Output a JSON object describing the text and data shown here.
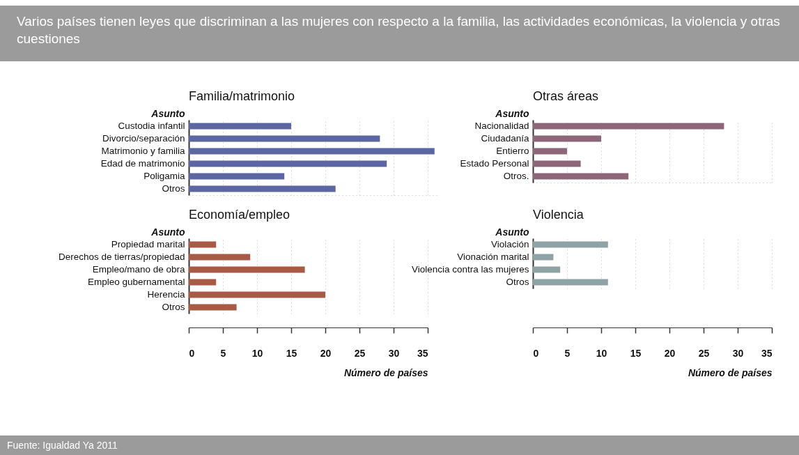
{
  "chart_data": [
    {
      "type": "bar",
      "orientation": "horizontal",
      "title": "Familia/matrimonio",
      "ylabel": "Asunto",
      "categories": [
        "Custodia infantil",
        "Divorcio/separación",
        "Matrimonio y familia",
        "Edad de matrimonio",
        "Poligamia",
        "Otros"
      ],
      "series": [
        {
          "color": "#5b66a3",
          "values": [
            15,
            28,
            36,
            29,
            14,
            21.5
          ]
        }
      ],
      "xlim": [
        0,
        36.5
      ],
      "xticks": [
        0,
        5,
        10,
        15,
        20,
        25,
        30,
        35
      ],
      "grid": "x",
      "tick_labels": "y",
      "legend": false,
      "annotations": [
        "Varios países tienen leyes que discriminan a las mujeres con respecto a la familia, las actividades económicas, la violencia y otras cuestiones"
      ]
    },
    {
      "type": "bar",
      "orientation": "horizontal",
      "title": "Otras áreas",
      "ylabel": "Asunto",
      "categories": [
        "Nacionalidad",
        "Ciudadanía",
        "Entierro",
        "Estado Personal",
        "Otros."
      ],
      "series": [
        {
          "color": "#8e6679",
          "values": [
            28,
            10,
            5,
            7,
            14
          ]
        }
      ],
      "xlim": [
        0,
        35
      ],
      "xticks": [
        0,
        5,
        10,
        15,
        20,
        25,
        30,
        35
      ],
      "grid": "x",
      "tick_labels": "y",
      "legend": false
    },
    {
      "type": "bar",
      "orientation": "horizontal",
      "title": "Economía/empleo",
      "ylabel": "Asunto",
      "xlabel": "Número de países",
      "categories": [
        "Propiedad marital",
        "Derechos de tierras/propiedad",
        "Empleo/mano de obra",
        "Empleo gubernamental",
        "Herencia",
        "Otros"
      ],
      "series": [
        {
          "color": "#a85a44",
          "values": [
            4,
            9,
            17,
            4,
            20,
            7
          ]
        }
      ],
      "xlim": [
        0,
        35
      ],
      "xticks": [
        0,
        5,
        10,
        15,
        20,
        25,
        30,
        35
      ],
      "grid": "x",
      "legend": false
    },
    {
      "type": "bar",
      "orientation": "horizontal",
      "title": "Violencia",
      "ylabel": "Asunto",
      "xlabel": "Número de países",
      "categories": [
        "Violación",
        "Vionación marital",
        "Violencia contra las mujeres",
        "Otros"
      ],
      "series": [
        {
          "color": "#8fa3a6",
          "values": [
            11,
            3,
            4,
            11
          ]
        }
      ],
      "xlim": [
        0,
        35
      ],
      "xticks": [
        0,
        5,
        10,
        15,
        20,
        25,
        30,
        35
      ],
      "grid": "x",
      "legend": false,
      "annotations": [
        "Fuente: Igualdad Ya 2011"
      ]
    }
  ]
}
